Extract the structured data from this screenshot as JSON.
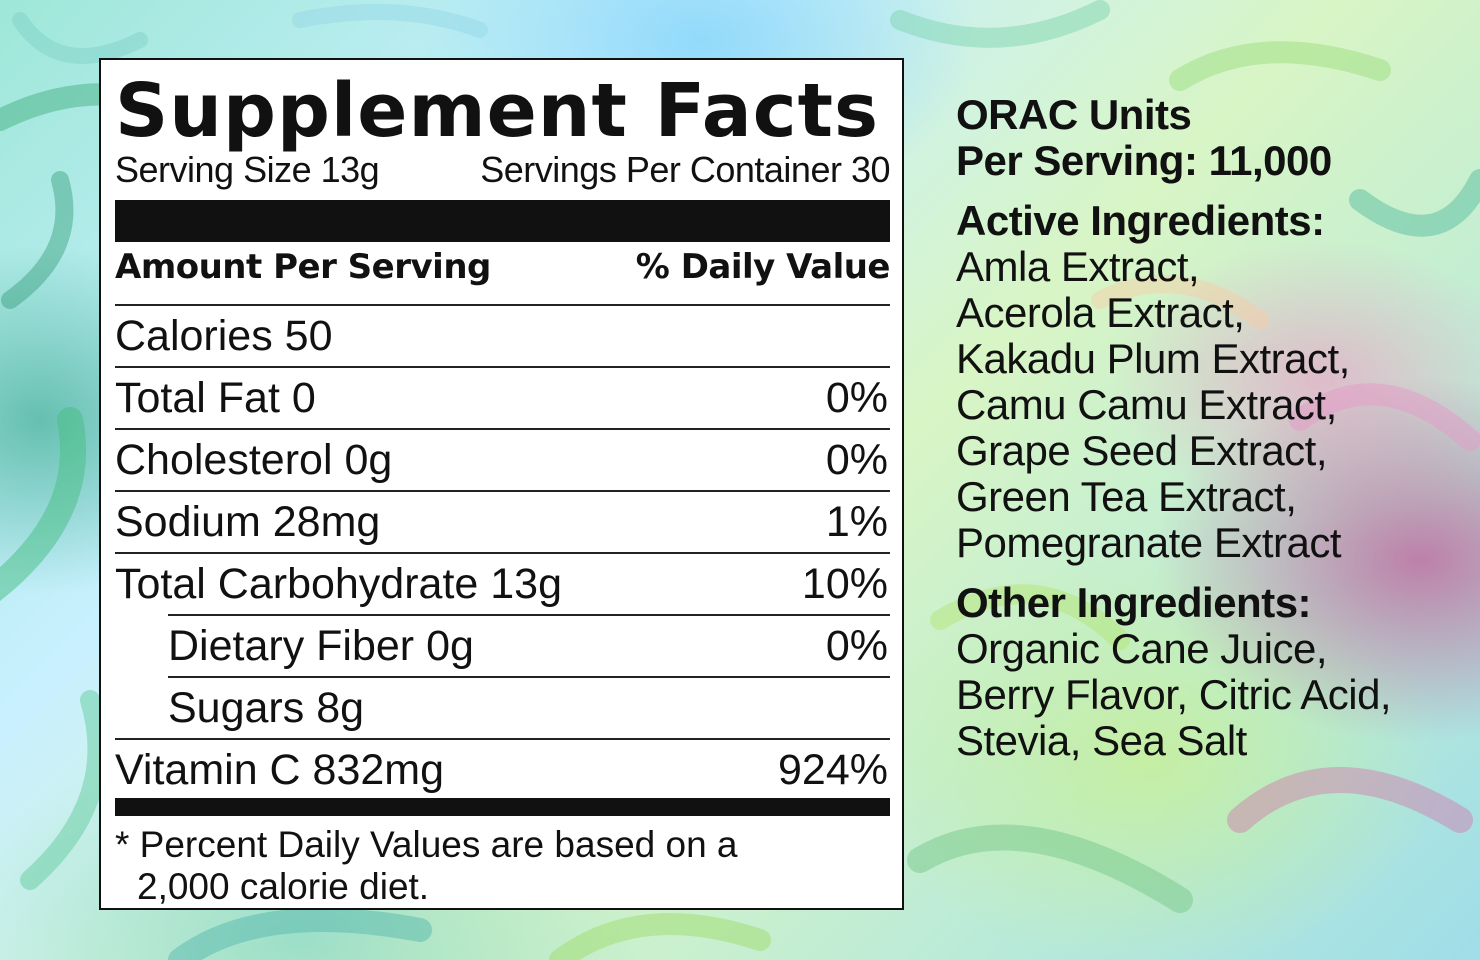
{
  "facts": {
    "title": "Supplement Facts",
    "serving_size": "Serving Size 13g",
    "servings_per_container": "Servings Per Container 30",
    "amount_header": "Amount Per Serving",
    "dv_header": "% Daily Value",
    "rows": [
      {
        "label": "Calories 50",
        "dv": "",
        "indent": false
      },
      {
        "label": "Total Fat 0",
        "dv": "0%",
        "indent": false
      },
      {
        "label": "Cholesterol 0g",
        "dv": "0%",
        "indent": false
      },
      {
        "label": "Sodium 28mg",
        "dv": "1%",
        "indent": false
      },
      {
        "label": "Total Carbohydrate 13g",
        "dv": "10%",
        "indent": false
      },
      {
        "label": "Dietary Fiber 0g",
        "dv": "0%",
        "indent": true
      },
      {
        "label": "Sugars 8g",
        "dv": "",
        "indent": true
      },
      {
        "label": "Vitamin C 832mg",
        "dv": "924%",
        "indent": false
      }
    ],
    "footnote_line1": "* Percent Daily Values are based on a",
    "footnote_line2": "2,000 calorie diet."
  },
  "side": {
    "orac_line1": "ORAC Units",
    "orac_line2": "Per Serving: 11,000",
    "active_heading": "Active Ingredients:",
    "active": [
      "Amla Extract,",
      "Acerola Extract,",
      "Kakadu Plum Extract,",
      "Camu Camu Extract,",
      "Grape Seed Extract,",
      "Green Tea Extract,",
      "Pomegranate Extract"
    ],
    "other_heading": "Other Ingredients:",
    "other": [
      "Organic Cane Juice,",
      "Berry Flavor, Citric Acid,",
      "Stevia, Sea Salt"
    ]
  }
}
